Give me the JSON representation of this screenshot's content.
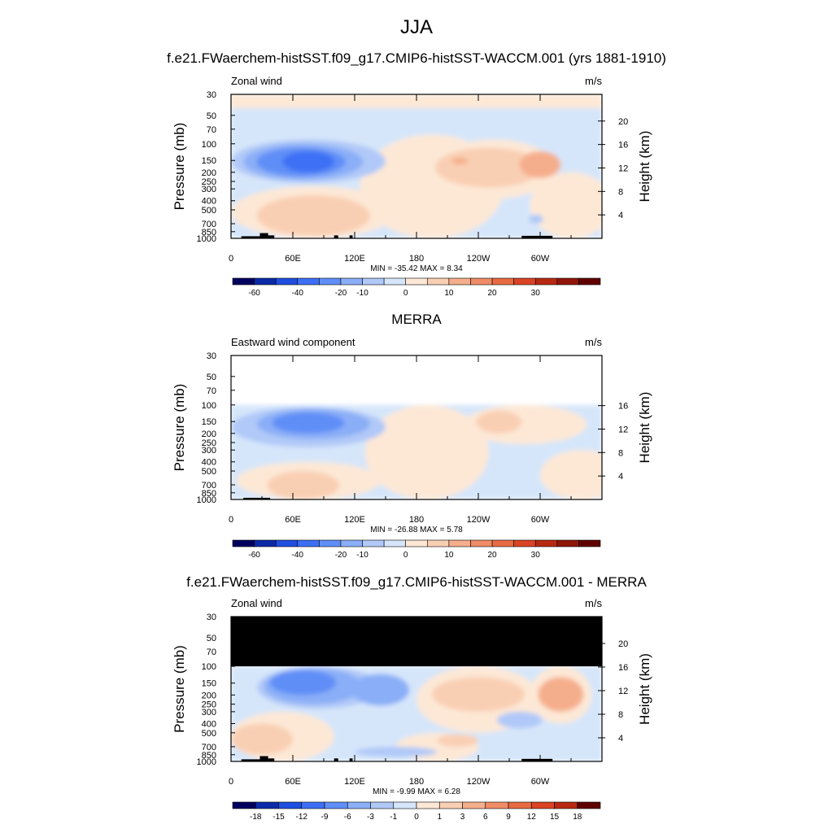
{
  "main_title": "JJA",
  "panels": [
    {
      "title": "f.e21.FWaerchem-histSST.f09_g17.CMIP6-histSST-WACCM.001 (yrs 1881-1910)",
      "left_label": "Zonal wind",
      "units": "m/s",
      "ylabel": "Pressure (mb)",
      "ylabel_right": "Height (km)",
      "pressure_ticks": [
        "30",
        "50",
        "70",
        "100",
        "150",
        "200",
        "250",
        "300",
        "400",
        "500",
        "700",
        "850",
        "1000"
      ],
      "height_ticks": [
        "20",
        "16",
        "12",
        "8",
        "4"
      ],
      "x_ticks": [
        "0",
        "60E",
        "120E",
        "180",
        "120W",
        "60W"
      ],
      "stats": "MIN = -35.42  MAX =   8.34",
      "colorbar_labels": [
        "-60",
        "-40",
        "-20",
        "-10",
        "0",
        "10",
        "20",
        "30"
      ]
    },
    {
      "title": "MERRA",
      "left_label": "Eastward wind component",
      "units": "m/s",
      "ylabel": "Pressure (mb)",
      "ylabel_right": "Height (km)",
      "pressure_ticks": [
        "30",
        "50",
        "70",
        "100",
        "150",
        "200",
        "250",
        "300",
        "400",
        "500",
        "700",
        "850",
        "1000"
      ],
      "height_ticks": [
        "16",
        "12",
        "8",
        "4"
      ],
      "x_ticks": [
        "0",
        "60E",
        "120E",
        "180",
        "120W",
        "60W"
      ],
      "stats": "MIN = -26.88  MAX =   5.78",
      "colorbar_labels": [
        "-60",
        "-40",
        "-20",
        "-10",
        "0",
        "10",
        "20",
        "30"
      ]
    },
    {
      "title": "f.e21.FWaerchem-histSST.f09_g17.CMIP6-histSST-WACCM.001 - MERRA",
      "left_label": "Zonal wind",
      "units": "m/s",
      "ylabel": "Pressure (mb)",
      "ylabel_right": "Height (km)",
      "pressure_ticks": [
        "30",
        "50",
        "70",
        "100",
        "150",
        "200",
        "250",
        "300",
        "400",
        "500",
        "700",
        "850",
        "1000"
      ],
      "height_ticks": [
        "20",
        "16",
        "12",
        "8",
        "4"
      ],
      "x_ticks": [
        "0",
        "60E",
        "120E",
        "180",
        "120W",
        "60W"
      ],
      "stats": "MIN =  -9.99  MAX =   6.28",
      "colorbar_labels": [
        "-18",
        "-15",
        "-12",
        "-9",
        "-6",
        "-3",
        "-1",
        "0",
        "1",
        "3",
        "6",
        "9",
        "12",
        "15",
        "18"
      ]
    }
  ],
  "colors": {
    "model_scale": [
      "#00005e",
      "#0a2aa8",
      "#1e4fe0",
      "#3d6ff5",
      "#5f8ef7",
      "#8aaef7",
      "#b1c9f8",
      "#d6e6fa",
      "#fde8d6",
      "#f9cfb3",
      "#f5ae8c",
      "#f08c66",
      "#e86a43",
      "#d94424",
      "#b82912",
      "#8f1608",
      "#600000"
    ],
    "diff_scale": [
      "#00005e",
      "#0a2aa8",
      "#1e4fe0",
      "#3d6ff5",
      "#5f8ef7",
      "#8aaef7",
      "#b1c9f8",
      "#d6e6fa",
      "#fde8d6",
      "#f9cfb3",
      "#f5ae8c",
      "#f08c66",
      "#e86a43",
      "#d94424",
      "#b82912",
      "#600000"
    ],
    "missing": "#000000"
  },
  "chart_data": [
    {
      "type": "heatmap",
      "title": "f.e21.FWaerchem-histSST.f09_g17.CMIP6-histSST-WACCM.001 (yrs 1881-1910)",
      "variable": "Zonal wind",
      "units": "m/s",
      "x_axis": "longitude",
      "xlim": [
        0,
        360
      ],
      "y_axis": "pressure (mb), log scale, reversed",
      "ylim": [
        1000,
        30
      ],
      "ylabel": "Pressure (mb)",
      "ylabel_right": "Height (km)",
      "min": -35.42,
      "max": 8.34,
      "levels": [
        -60,
        -50,
        -40,
        -30,
        -20,
        -15,
        -10,
        -5,
        0,
        5,
        10,
        15,
        20,
        25,
        30,
        35
      ]
    },
    {
      "type": "heatmap",
      "title": "MERRA",
      "variable": "Eastward wind component",
      "units": "m/s",
      "x_axis": "longitude",
      "xlim": [
        0,
        360
      ],
      "y_axis": "pressure (mb), log scale, reversed",
      "ylim": [
        1000,
        30
      ],
      "data_top_pressure": 100,
      "ylabel": "Pressure (mb)",
      "ylabel_right": "Height (km)",
      "min": -26.88,
      "max": 5.78,
      "levels": [
        -60,
        -50,
        -40,
        -30,
        -20,
        -15,
        -10,
        -5,
        0,
        5,
        10,
        15,
        20,
        25,
        30,
        35
      ]
    },
    {
      "type": "heatmap",
      "title": "f.e21.FWaerchem-histSST.f09_g17.CMIP6-histSST-WACCM.001 - MERRA",
      "variable": "Zonal wind",
      "units": "m/s",
      "x_axis": "longitude",
      "xlim": [
        0,
        360
      ],
      "y_axis": "pressure (mb), log scale, reversed",
      "ylim": [
        1000,
        30
      ],
      "missing_above_pressure": 100,
      "ylabel": "Pressure (mb)",
      "ylabel_right": "Height (km)",
      "min": -9.99,
      "max": 6.28,
      "levels": [
        -18,
        -15,
        -12,
        -9,
        -6,
        -3,
        -1,
        0,
        1,
        3,
        6,
        9,
        12,
        15,
        18
      ]
    }
  ]
}
